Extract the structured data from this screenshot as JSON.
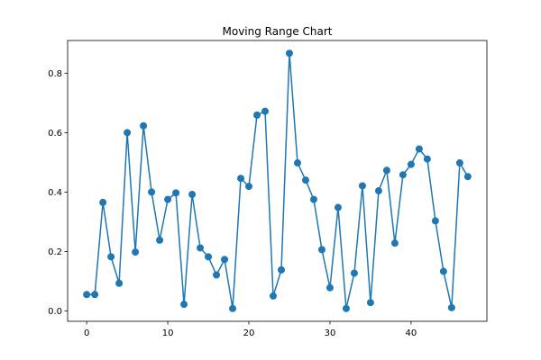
{
  "chart_data": {
    "type": "line",
    "title": "Moving Range Chart",
    "xlabel": "",
    "ylabel": "",
    "xlim": [
      -2.35,
      49.35
    ],
    "ylim": [
      -0.035,
      0.91
    ],
    "xticks": [
      0,
      10,
      20,
      30,
      40
    ],
    "yticks": [
      0.0,
      0.2,
      0.4,
      0.6,
      0.8
    ],
    "grid": false,
    "line_color": "#1f77b4",
    "marker": "circle",
    "x": [
      0,
      1,
      2,
      3,
      4,
      5,
      6,
      7,
      8,
      9,
      10,
      11,
      12,
      13,
      14,
      15,
      16,
      17,
      18,
      19,
      20,
      21,
      22,
      23,
      24,
      25,
      26,
      27,
      28,
      29,
      30,
      31,
      32,
      33,
      34,
      35,
      36,
      37,
      38,
      39,
      40,
      41,
      42,
      43,
      44,
      45,
      46,
      47
    ],
    "values": [
      0.055,
      0.055,
      0.365,
      0.182,
      0.093,
      0.6,
      0.198,
      0.623,
      0.4,
      0.238,
      0.375,
      0.397,
      0.022,
      0.392,
      0.212,
      0.182,
      0.121,
      0.173,
      0.008,
      0.446,
      0.419,
      0.659,
      0.672,
      0.05,
      0.138,
      0.867,
      0.498,
      0.44,
      0.375,
      0.206,
      0.078,
      0.348,
      0.008,
      0.127,
      0.421,
      0.028,
      0.404,
      0.473,
      0.228,
      0.458,
      0.493,
      0.545,
      0.511,
      0.303,
      0.133,
      0.011,
      0.498,
      0.452
    ]
  }
}
